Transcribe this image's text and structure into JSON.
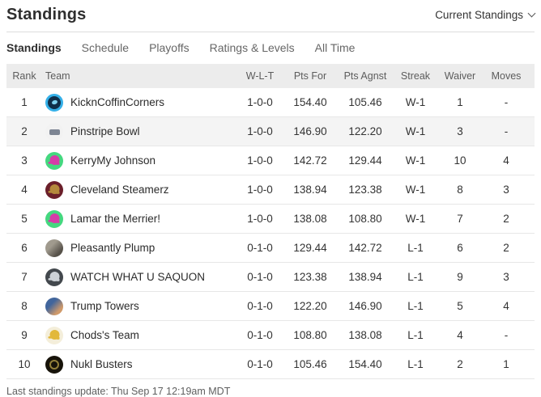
{
  "header": {
    "title": "Standings",
    "view_selector": "Current Standings"
  },
  "tabs": [
    {
      "label": "Standings",
      "active": true
    },
    {
      "label": "Schedule",
      "active": false
    },
    {
      "label": "Playoffs",
      "active": false
    },
    {
      "label": "Ratings & Levels",
      "active": false
    },
    {
      "label": "All Time",
      "active": false
    }
  ],
  "table": {
    "columns": [
      "Rank",
      "Team",
      "W-L-T",
      "Pts For",
      "Pts Agnst",
      "Streak",
      "Waiver",
      "Moves"
    ],
    "column_keys": [
      "rank",
      "team",
      "wlt",
      "pts_for",
      "pts_agnst",
      "streak",
      "waiver",
      "moves"
    ],
    "rows": [
      {
        "rank": "1",
        "team": "KicknCoffinCorners",
        "wlt": "1-0-0",
        "pts_for": "154.40",
        "pts_agnst": "105.46",
        "streak": "W-1",
        "waiver": "1",
        "moves": "-",
        "highlighted": false,
        "avatar": {
          "style": "ring",
          "colors": [
            "#35b0e8",
            "#0f2f4a"
          ]
        }
      },
      {
        "rank": "2",
        "team": "Pinstripe Bowl",
        "wlt": "1-0-0",
        "pts_for": "146.90",
        "pts_agnst": "122.20",
        "streak": "W-1",
        "waiver": "3",
        "moves": "-",
        "highlighted": true,
        "avatar": {
          "style": "image",
          "colors": [
            "#f2f2f2",
            "#7d8593"
          ]
        }
      },
      {
        "rank": "3",
        "team": "KerryMy Johnson",
        "wlt": "1-0-0",
        "pts_for": "142.72",
        "pts_agnst": "129.44",
        "streak": "W-1",
        "waiver": "10",
        "moves": "4",
        "highlighted": false,
        "avatar": {
          "style": "helmet",
          "colors": [
            "#44d87f",
            "#d63ba8"
          ]
        }
      },
      {
        "rank": "4",
        "team": "Cleveland Steamerz",
        "wlt": "1-0-0",
        "pts_for": "138.94",
        "pts_agnst": "123.38",
        "streak": "W-1",
        "waiver": "8",
        "moves": "3",
        "highlighted": false,
        "avatar": {
          "style": "helmet",
          "colors": [
            "#6b1f2a",
            "#b5893c"
          ]
        }
      },
      {
        "rank": "5",
        "team": "Lamar the Merrier!",
        "wlt": "1-0-0",
        "pts_for": "138.08",
        "pts_agnst": "108.80",
        "streak": "W-1",
        "waiver": "7",
        "moves": "2",
        "highlighted": false,
        "avatar": {
          "style": "helmet",
          "colors": [
            "#44d87f",
            "#d63ba8"
          ]
        }
      },
      {
        "rank": "6",
        "team": "Pleasantly Plump",
        "wlt": "0-1-0",
        "pts_for": "129.44",
        "pts_agnst": "142.72",
        "streak": "L-1",
        "waiver": "6",
        "moves": "2",
        "highlighted": false,
        "avatar": {
          "style": "photo",
          "colors": [
            "#a09a8e",
            "#57524a"
          ]
        }
      },
      {
        "rank": "7",
        "team": "WATCH WHAT U SAQUON",
        "wlt": "0-1-0",
        "pts_for": "123.38",
        "pts_agnst": "138.94",
        "streak": "L-1",
        "waiver": "9",
        "moves": "3",
        "highlighted": false,
        "avatar": {
          "style": "helmet",
          "colors": [
            "#43484d",
            "#ccd1d6"
          ]
        }
      },
      {
        "rank": "8",
        "team": "Trump Towers",
        "wlt": "0-1-0",
        "pts_for": "122.20",
        "pts_agnst": "146.90",
        "streak": "L-1",
        "waiver": "5",
        "moves": "4",
        "highlighted": false,
        "avatar": {
          "style": "photo",
          "colors": [
            "#41659c",
            "#d09a6a"
          ]
        }
      },
      {
        "rank": "9",
        "team": "Chods's Team",
        "wlt": "0-1-0",
        "pts_for": "108.80",
        "pts_agnst": "138.08",
        "streak": "L-1",
        "waiver": "4",
        "moves": "-",
        "highlighted": false,
        "avatar": {
          "style": "helmet",
          "colors": [
            "#f4eeda",
            "#e2b83a"
          ]
        }
      },
      {
        "rank": "10",
        "team": "Nukl Busters",
        "wlt": "0-1-0",
        "pts_for": "105.46",
        "pts_agnst": "154.40",
        "streak": "L-1",
        "waiver": "2",
        "moves": "1",
        "highlighted": false,
        "avatar": {
          "style": "emblem",
          "colors": [
            "#17130a",
            "#93803a"
          ]
        }
      }
    ]
  },
  "footer": {
    "last_update": "Last standings update: Thu Sep 17 12:19am MDT"
  }
}
